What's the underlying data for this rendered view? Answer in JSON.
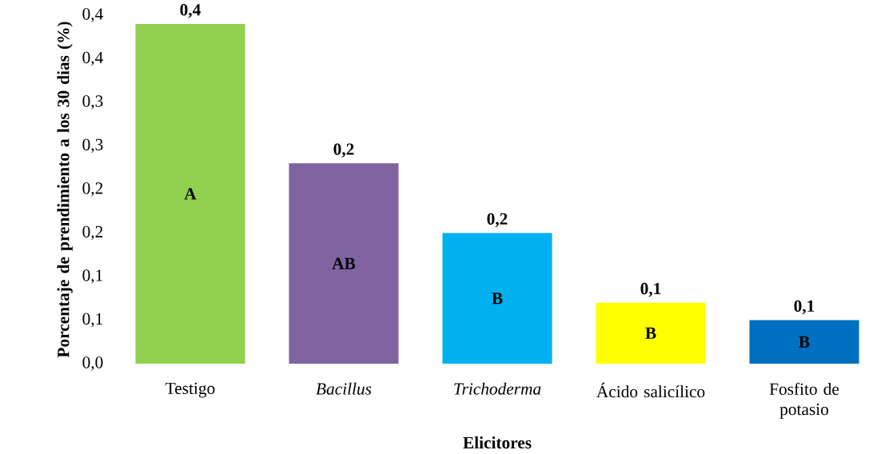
{
  "chart_data": {
    "type": "bar",
    "xlabel": "Elicitores",
    "ylabel": "Porcentaje de prendimiento a los 30 dias (%)",
    "categories": [
      "Testigo",
      "*Bacillus*",
      "*Trichoderma*",
      "Ácido salicílico",
      "Fosfito de potasio"
    ],
    "values": [
      0.39,
      0.23,
      0.15,
      0.07,
      0.05
    ],
    "colors": [
      "#92d050",
      "#8064a2",
      "#00b0f0",
      "#ffff00",
      "#0070c0"
    ],
    "value_labels": [
      "0,4",
      "0,2",
      "0,2",
      "0,1",
      "0,1"
    ],
    "ylim": [
      0,
      0.4
    ],
    "yticks": [
      {
        "value": 0,
        "label": "0,0"
      },
      {
        "value": 0.05,
        "label": "0,1"
      },
      {
        "value": 0.1,
        "label": "0,1"
      },
      {
        "value": 0.15,
        "label": "0,2"
      },
      {
        "value": 0.2,
        "label": "0,2"
      },
      {
        "value": 0.25,
        "label": "0,3"
      },
      {
        "value": 0.3,
        "label": "0,3"
      },
      {
        "value": 0.35,
        "label": "0,4"
      },
      {
        "value": 0.4,
        "label": "0,4"
      }
    ],
    "annotations": [
      "A",
      "AB",
      "B",
      "B",
      "B"
    ],
    "grid": false
  }
}
